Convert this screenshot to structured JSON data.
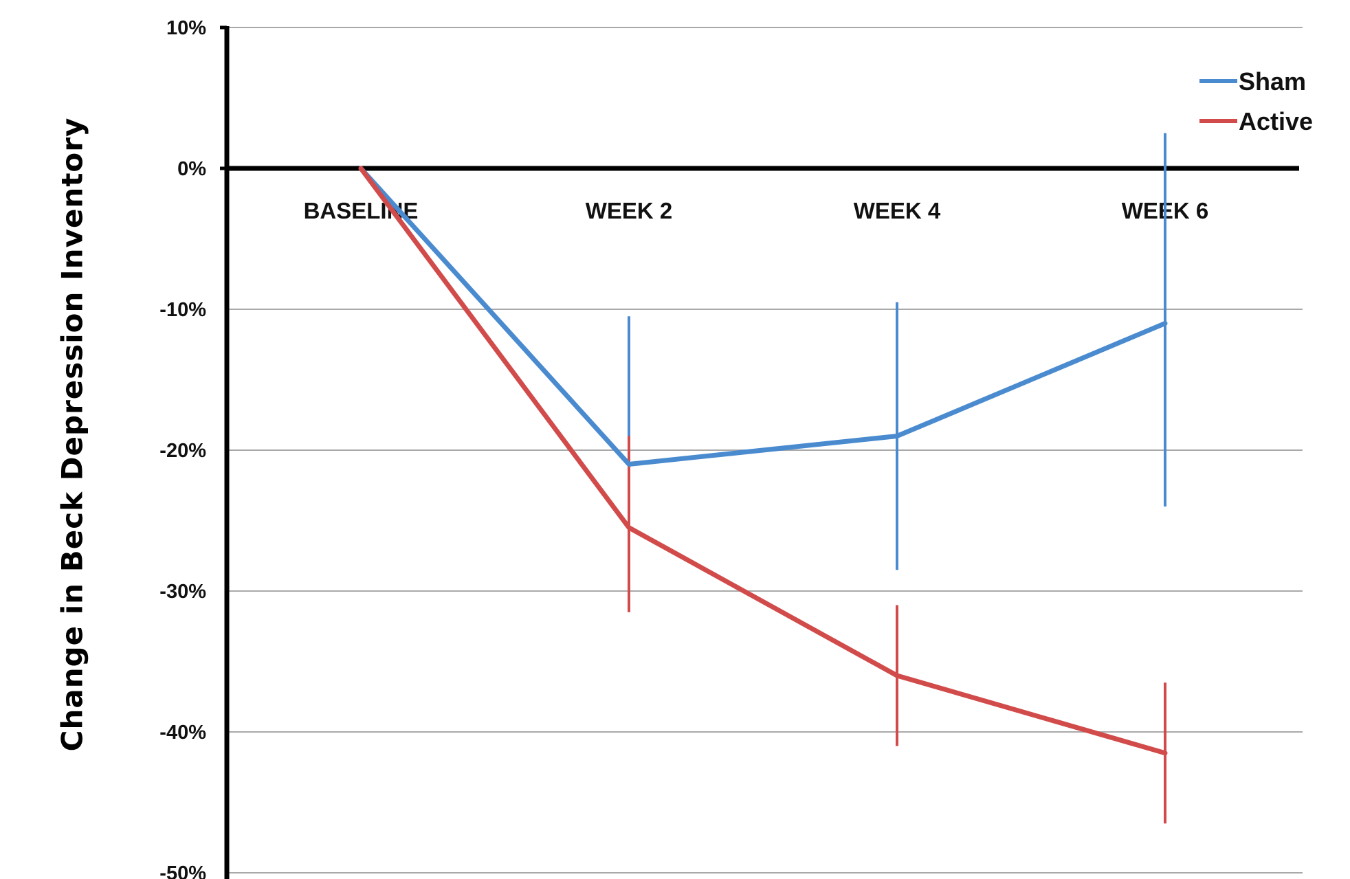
{
  "chart_data": {
    "type": "line",
    "title": "",
    "xlabel": "",
    "ylabel": "Change in Beck Depression Inventory",
    "categories": [
      "BASELINE",
      "WEEK 2",
      "WEEK 4",
      "WEEK 6"
    ],
    "yticks": [
      "10%",
      "0%",
      "-10%",
      "-20%",
      "-30%",
      "-40%",
      "-50%"
    ],
    "ytick_values": [
      10,
      0,
      -10,
      -20,
      -30,
      -40,
      -50
    ],
    "ylim": [
      -50,
      10
    ],
    "grid": true,
    "legend_position": "top-right",
    "series": [
      {
        "name": "Sham",
        "color": "#4a8bd0",
        "values": [
          0,
          -21,
          -19,
          -11
        ],
        "error_low": [
          null,
          -31,
          -28.5,
          -24
        ],
        "error_high": [
          null,
          -10.5,
          -9.5,
          2.5
        ]
      },
      {
        "name": "Active",
        "color": "#d24b4b",
        "values": [
          0,
          -25.5,
          -36,
          -41.5
        ],
        "error_low": [
          null,
          -31.5,
          -41,
          -46.5
        ],
        "error_high": [
          null,
          -19,
          -31,
          -36.5
        ]
      }
    ]
  }
}
